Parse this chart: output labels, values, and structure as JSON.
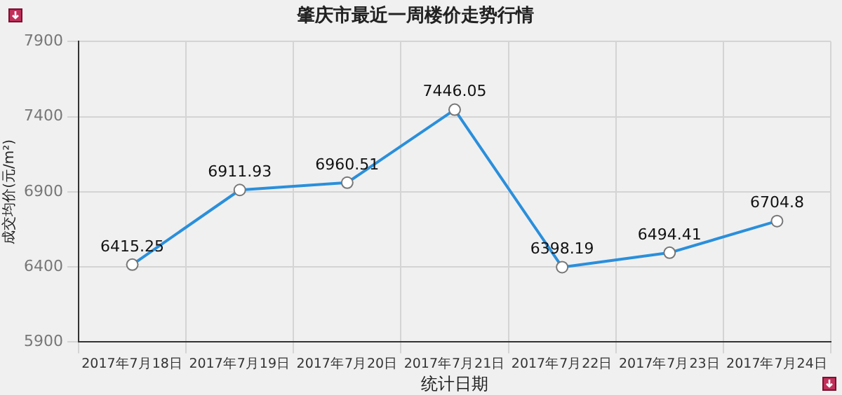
{
  "chart_data": {
    "type": "line",
    "title": "肇庆市最近一周楼价走势行情",
    "xlabel": "统计日期",
    "ylabel": "成交均价(元/m²)",
    "categories": [
      "2017年7月18日",
      "2017年7月19日",
      "2017年7月20日",
      "2017年7月21日",
      "2017年7月22日",
      "2017年7月23日",
      "2017年7月24日"
    ],
    "series": [
      {
        "color": "#2a8fdb",
        "values": [
          6415.25,
          6911.93,
          6960.51,
          7446.05,
          6398.19,
          6494.41,
          6704.8
        ]
      }
    ],
    "ylim": [
      5900,
      7900
    ],
    "yticks": [
      5900,
      6400,
      6900,
      7400,
      7900
    ],
    "grid": true,
    "legend": false,
    "marker": "circle",
    "line_style": "solid",
    "data_labels": true
  }
}
